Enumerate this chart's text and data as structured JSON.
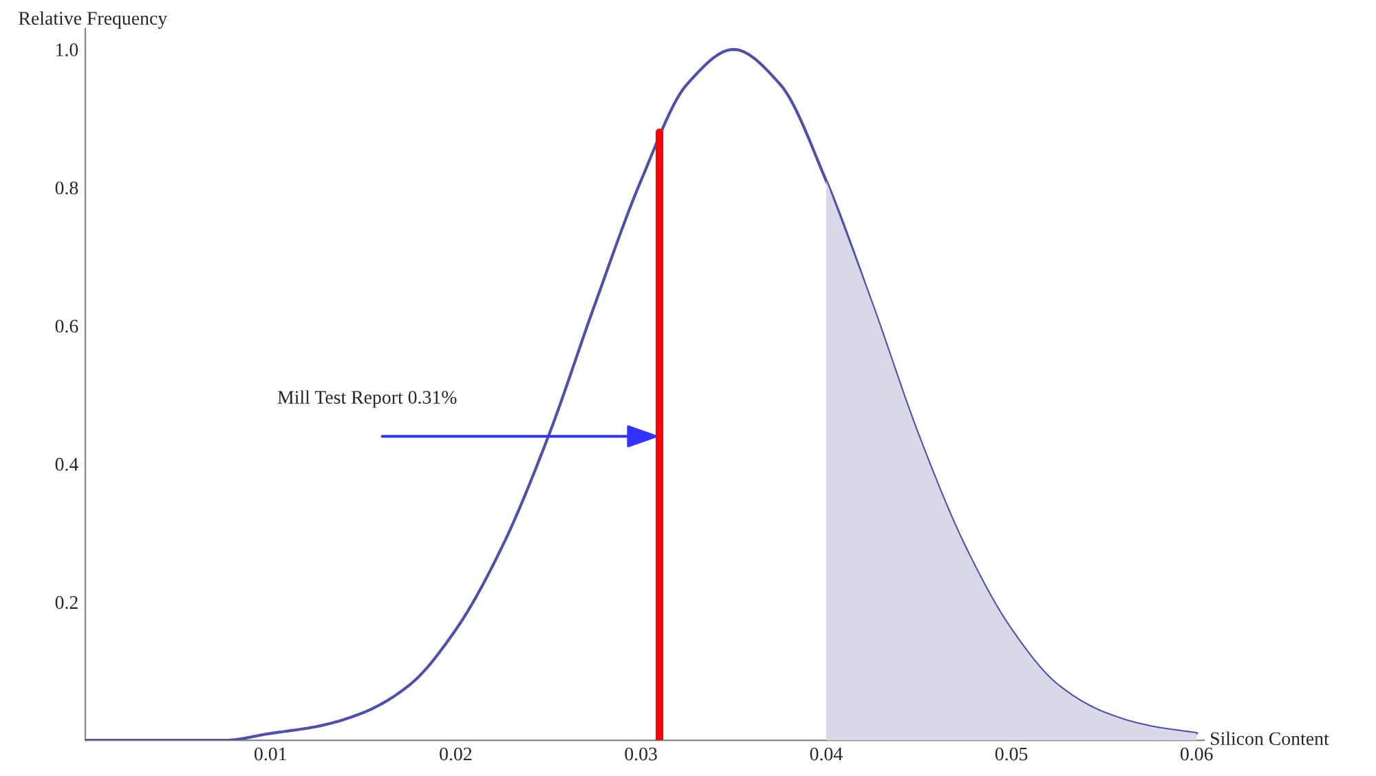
{
  "chart_data": {
    "type": "line",
    "xlabel": "Silicon Content",
    "ylabel": "Relative Frequency",
    "x": [
      0,
      0.0025,
      0.005,
      0.0075,
      0.01,
      0.0125,
      0.015,
      0.0175,
      0.02,
      0.0225,
      0.025,
      0.0275,
      0.03,
      0.0325,
      0.035,
      0.0375,
      0.04,
      0.0425,
      0.045,
      0.0475,
      0.05,
      0.0525,
      0.055,
      0.0575,
      0.06
    ],
    "series": [
      {
        "color": "#5050a8",
        "values": [
          0.0,
          0.0,
          0.0,
          0.0,
          0.01,
          0.02,
          0.04,
          0.08,
          0.16,
          0.28,
          0.44,
          0.63,
          0.81,
          0.95,
          1.0,
          0.95,
          0.81,
          0.63,
          0.44,
          0.28,
          0.16,
          0.08,
          0.04,
          0.02,
          0.01
        ]
      },
      {
        "type": "area",
        "color": "#d8d8e8",
        "x": [
          0.04,
          0.0425,
          0.045,
          0.0475,
          0.05,
          0.0525,
          0.055,
          0.0575,
          0.06
        ],
        "values": [
          0.81,
          0.63,
          0.44,
          0.28,
          0.16,
          0.08,
          0.04,
          0.02,
          0.01
        ]
      },
      {
        "type": "line",
        "color": "#ff0000",
        "x": [
          0.031,
          0.031
        ],
        "values": [
          0,
          0.88
        ]
      }
    ],
    "annotations": [
      "Mill Test Report 0.31%"
    ],
    "xlim": [
      0,
      0.0604
    ],
    "ylim": [
      0,
      1.03
    ],
    "xticks": [
      0.01,
      0.02,
      0.03,
      0.04,
      0.05,
      0.06
    ],
    "yticks": [
      0.2,
      0.4,
      0.6,
      0.8,
      {
        "value": 1.0,
        "label": "1.0"
      }
    ],
    "grid": false,
    "legend": false
  }
}
